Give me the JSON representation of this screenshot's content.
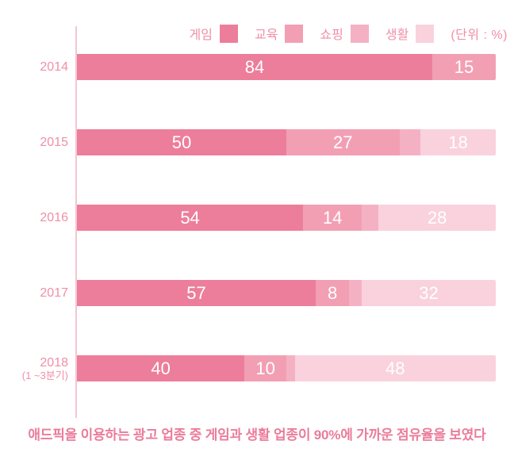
{
  "legend": {
    "items": [
      {
        "label": "게임",
        "color": "#EC7E9B"
      },
      {
        "label": "교육",
        "color": "#F29FB4"
      },
      {
        "label": "쇼핑",
        "color": "#F5B1C4"
      },
      {
        "label": "생활",
        "color": "#F9D2DE"
      }
    ],
    "unit_label": "(단위 : %)",
    "position": "top-right"
  },
  "chart_data": {
    "type": "bar",
    "orientation": "horizontal",
    "stacked": true,
    "unit": "%",
    "axis_range": [
      0,
      100
    ],
    "grid": false,
    "value_label_min": 8,
    "categories": [
      {
        "label": "2014",
        "sub": ""
      },
      {
        "label": "2015",
        "sub": ""
      },
      {
        "label": "2016",
        "sub": ""
      },
      {
        "label": "2017",
        "sub": ""
      },
      {
        "label": "2018",
        "sub": "(1 ~3분기)"
      }
    ],
    "series": [
      {
        "name": "게임",
        "color": "#EC7E9B",
        "values": [
          84,
          50,
          54,
          57,
          40
        ]
      },
      {
        "name": "교육",
        "color": "#F29FB4",
        "values": [
          15,
          27,
          14,
          8,
          10
        ]
      },
      {
        "name": "쇼핑",
        "color": "#F5B1C4",
        "values": [
          0,
          5,
          4,
          3,
          2
        ]
      },
      {
        "name": "생활",
        "color": "#F9D2DE",
        "values": [
          0,
          18,
          28,
          32,
          48
        ]
      }
    ]
  },
  "caption": "애드픽을 이용하는 광고 업종 중 게임과 생활 업종이 90%에 가까운 점유율을 보였다"
}
